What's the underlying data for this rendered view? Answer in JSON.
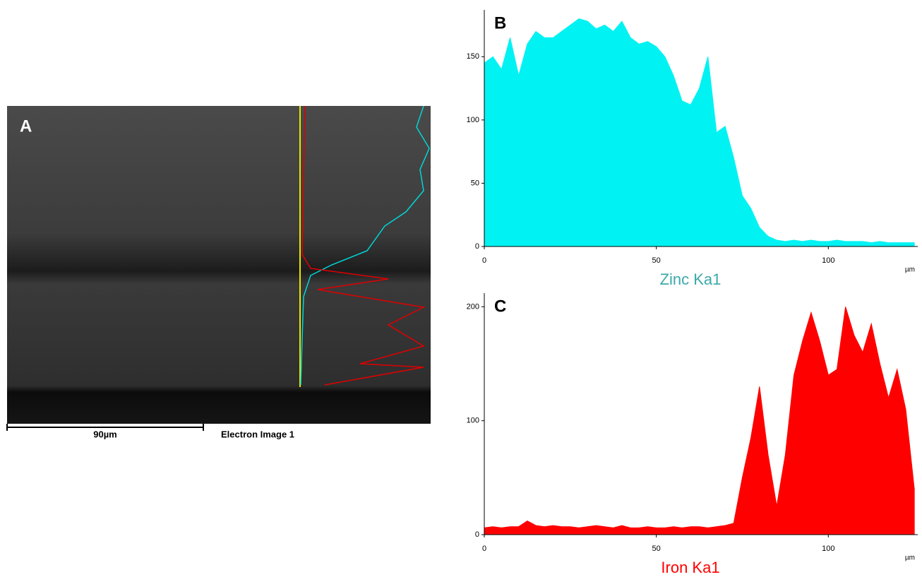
{
  "image_panel": {
    "panel_label": "A",
    "scale_bar_label": "90µm",
    "image_label": "Electron Image 1"
  },
  "chart_data": [
    {
      "type": "area",
      "panel_label": "B",
      "xlabel": "Zinc Ka1",
      "x_unit": "µm",
      "color": "#00f2f2",
      "label_color": "#3aa9a9",
      "x": [
        0,
        2.5,
        5,
        7.5,
        10,
        12.5,
        15,
        17.5,
        20,
        22.5,
        25,
        27.5,
        30,
        32.5,
        35,
        37.5,
        40,
        42.5,
        45,
        47.5,
        50,
        52.5,
        55,
        57.5,
        60,
        62.5,
        65,
        67.5,
        70,
        72.5,
        75,
        77.5,
        80,
        82.5,
        85,
        87.5,
        90,
        92.5,
        95,
        97.5,
        100,
        102.5,
        105,
        107.5,
        110,
        112.5,
        115,
        117.5,
        120,
        122.5,
        125
      ],
      "values": [
        145,
        150,
        140,
        165,
        135,
        160,
        170,
        165,
        165,
        170,
        175,
        180,
        178,
        172,
        175,
        170,
        178,
        165,
        160,
        162,
        158,
        150,
        135,
        115,
        112,
        125,
        150,
        90,
        95,
        70,
        40,
        30,
        15,
        8,
        5,
        4,
        5,
        4,
        5,
        4,
        4,
        5,
        4,
        4,
        4,
        3,
        4,
        3,
        3,
        3,
        3
      ],
      "xlim": [
        0,
        126
      ],
      "ylim": [
        0,
        187
      ],
      "xticks": [
        0,
        50,
        100
      ],
      "yticks": [
        0,
        50,
        100,
        150
      ]
    },
    {
      "type": "area",
      "panel_label": "C",
      "xlabel": "Iron Ka1",
      "x_unit": "µm",
      "color": "#ff0000",
      "label_color": "#ff0000",
      "x": [
        0,
        2.5,
        5,
        7.5,
        10,
        12.5,
        15,
        17.5,
        20,
        22.5,
        25,
        27.5,
        30,
        32.5,
        35,
        37.5,
        40,
        42.5,
        45,
        47.5,
        50,
        52.5,
        55,
        57.5,
        60,
        62.5,
        65,
        67.5,
        70,
        72.5,
        75,
        77.5,
        80,
        82.5,
        85,
        87.5,
        90,
        92.5,
        95,
        97.5,
        100,
        102.5,
        105,
        107.5,
        110,
        112.5,
        115,
        117.5,
        120,
        122.5,
        125
      ],
      "values": [
        6,
        7,
        6,
        7,
        7,
        12,
        8,
        7,
        8,
        7,
        7,
        6,
        7,
        8,
        7,
        6,
        8,
        6,
        6,
        7,
        6,
        6,
        7,
        6,
        7,
        7,
        6,
        7,
        8,
        10,
        50,
        85,
        130,
        70,
        25,
        70,
        140,
        170,
        195,
        170,
        140,
        145,
        200,
        175,
        160,
        185,
        150,
        120,
        145,
        110,
        40
      ],
      "xlim": [
        0,
        126
      ],
      "ylim": [
        0,
        212
      ],
      "xticks": [
        0,
        50,
        100
      ],
      "yticks": [
        0,
        100,
        200
      ]
    }
  ]
}
